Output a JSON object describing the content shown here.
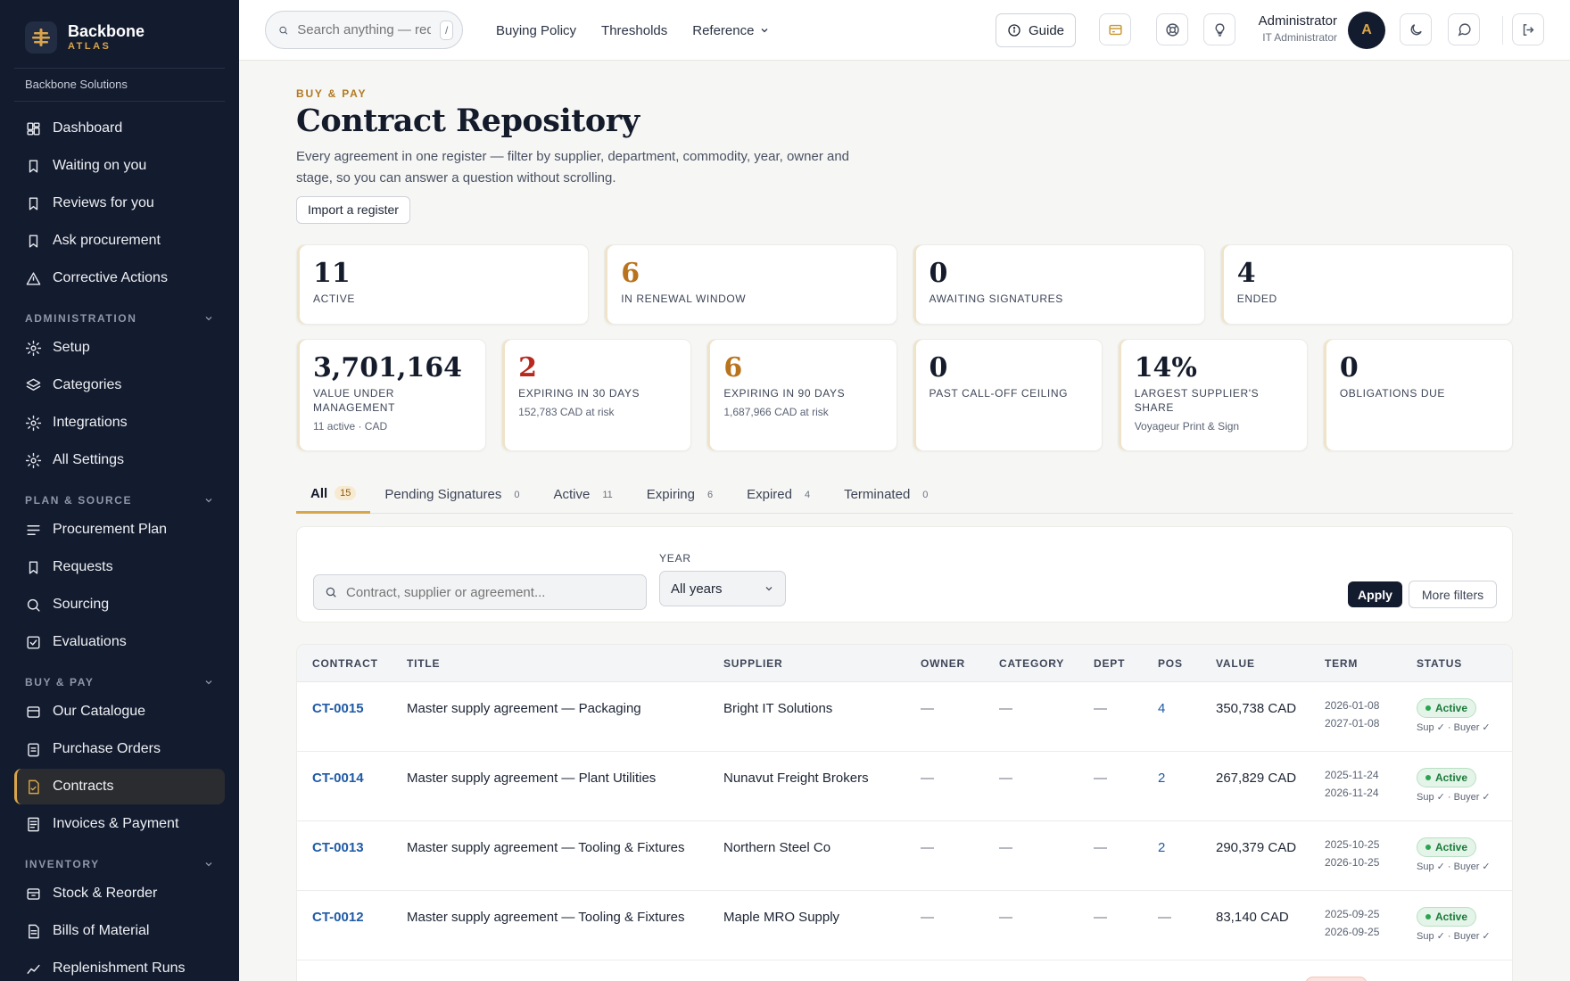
{
  "brand": {
    "name": "Backbone",
    "sub": "ATLAS",
    "org": "Backbone Solutions"
  },
  "sidebar": {
    "top_items": [
      {
        "label": "Dashboard",
        "icon": "dashboard-icon"
      },
      {
        "label": "Waiting on you",
        "icon": "bookmark-icon"
      },
      {
        "label": "Reviews for you",
        "icon": "bookmark-icon"
      },
      {
        "label": "Ask procurement",
        "icon": "bookmark-icon"
      },
      {
        "label": "Corrective Actions",
        "icon": "warning-icon"
      }
    ],
    "groups": [
      {
        "label": "ADMINISTRATION",
        "items": [
          {
            "label": "Setup",
            "icon": "gear-icon"
          },
          {
            "label": "Categories",
            "icon": "layers-icon"
          },
          {
            "label": "Integrations",
            "icon": "gear-icon"
          },
          {
            "label": "All Settings",
            "icon": "gear-icon"
          }
        ]
      },
      {
        "label": "PLAN & SOURCE",
        "items": [
          {
            "label": "Procurement Plan",
            "icon": "list-icon"
          },
          {
            "label": "Requests",
            "icon": "bookmark-icon"
          },
          {
            "label": "Sourcing",
            "icon": "search-icon"
          },
          {
            "label": "Evaluations",
            "icon": "checkbox-icon"
          }
        ]
      },
      {
        "label": "BUY & PAY",
        "items": [
          {
            "label": "Our Catalogue",
            "icon": "catalogue-icon"
          },
          {
            "label": "Purchase Orders",
            "icon": "clipboard-icon"
          },
          {
            "label": "Contracts",
            "icon": "contract-icon",
            "active": true
          },
          {
            "label": "Invoices & Payment",
            "icon": "invoice-icon"
          }
        ]
      },
      {
        "label": "INVENTORY",
        "items": [
          {
            "label": "Stock & Reorder",
            "icon": "box-icon"
          },
          {
            "label": "Bills of Material",
            "icon": "document-icon"
          },
          {
            "label": "Replenishment Runs",
            "icon": "chart-icon"
          }
        ]
      }
    ]
  },
  "topbar": {
    "search_placeholder": "Search anything — req",
    "search_kbd": "/",
    "nav": [
      "Buying Policy",
      "Thresholds",
      "Reference"
    ],
    "guide_label": "Guide",
    "user_name": "Administrator",
    "user_role": "IT Administrator",
    "avatar_initial": "A"
  },
  "page": {
    "eyebrow": "BUY & PAY",
    "title": "Contract Repository",
    "description": "Every agreement in one register — filter by supplier, department, commodity, year, owner and stage, so you can answer a question without scrolling.",
    "import_label": "Import a register"
  },
  "stats_row1": [
    {
      "value": "11",
      "label": "ACTIVE",
      "tone": "dark"
    },
    {
      "value": "6",
      "label": "IN RENEWAL WINDOW",
      "tone": "amber"
    },
    {
      "value": "0",
      "label": "AWAITING SIGNATURES",
      "tone": "dark"
    },
    {
      "value": "4",
      "label": "ENDED",
      "tone": "dark"
    }
  ],
  "stats_row2": [
    {
      "value": "3,701,164",
      "label": "VALUE UNDER MANAGEMENT",
      "sub": "11 active · CAD",
      "tone": "dark"
    },
    {
      "value": "2",
      "label": "EXPIRING IN 30 DAYS",
      "sub": "152,783 CAD at risk",
      "tone": "red"
    },
    {
      "value": "6",
      "label": "EXPIRING IN 90 DAYS",
      "sub": "1,687,966 CAD at risk",
      "tone": "amber"
    },
    {
      "value": "0",
      "label": "PAST CALL-OFF CEILING",
      "sub": "",
      "tone": "dark"
    },
    {
      "value": "14%",
      "label": "LARGEST SUPPLIER'S SHARE",
      "sub": "Voyageur Print & Sign",
      "tone": "dark"
    },
    {
      "value": "0",
      "label": "OBLIGATIONS DUE",
      "sub": "",
      "tone": "dark"
    }
  ],
  "tabs": [
    {
      "label": "All",
      "count": "15",
      "active": true
    },
    {
      "label": "Pending Signatures",
      "count": "0"
    },
    {
      "label": "Active",
      "count": "11"
    },
    {
      "label": "Expiring",
      "count": "6"
    },
    {
      "label": "Expired",
      "count": "4"
    },
    {
      "label": "Terminated",
      "count": "0"
    }
  ],
  "filters": {
    "search_placeholder": "Contract, supplier or agreement...",
    "year_label": "YEAR",
    "year_value": "All years",
    "apply_label": "Apply",
    "more_label": "More filters"
  },
  "table": {
    "headers": [
      "CONTRACT",
      "TITLE",
      "SUPPLIER",
      "OWNER",
      "CATEGORY",
      "DEPT",
      "POS",
      "VALUE",
      "TERM",
      "STATUS"
    ],
    "rows": [
      {
        "id": "CT-0015",
        "title": "Master supply agreement — Packaging",
        "supplier": "Bright IT Solutions",
        "owner": "—",
        "category": "—",
        "dept": "—",
        "pos": "4",
        "value": "350,738 CAD",
        "term_start": "2026-01-08",
        "term_end": "2027-01-08",
        "status": "Active",
        "sig": "Sup ✓ · Buyer ✓"
      },
      {
        "id": "CT-0014",
        "title": "Master supply agreement — Plant Utilities",
        "supplier": "Nunavut Freight Brokers",
        "owner": "—",
        "category": "—",
        "dept": "—",
        "pos": "2",
        "value": "267,829 CAD",
        "term_start": "2025-11-24",
        "term_end": "2026-11-24",
        "status": "Active",
        "sig": "Sup ✓ · Buyer ✓"
      },
      {
        "id": "CT-0013",
        "title": "Master supply agreement — Tooling & Fixtures",
        "supplier": "Northern Steel Co",
        "owner": "—",
        "category": "—",
        "dept": "—",
        "pos": "2",
        "value": "290,379 CAD",
        "term_start": "2025-10-25",
        "term_end": "2026-10-25",
        "status": "Active",
        "sig": "Sup ✓ · Buyer ✓"
      },
      {
        "id": "CT-0012",
        "title": "Master supply agreement — Tooling & Fixtures",
        "supplier": "Maple MRO Supply",
        "owner": "—",
        "category": "—",
        "dept": "—",
        "pos": "—",
        "value": "83,140 CAD",
        "term_start": "2025-09-25",
        "term_end": "2026-09-25",
        "status": "Active",
        "sig": "Sup ✓ · Buyer ✓"
      }
    ]
  },
  "colors": {
    "accent": "#d9a54a",
    "sidebar": "#131b2e",
    "link": "#1f5aa6",
    "active_green": "#1b7a3b",
    "danger": "#b8281f"
  }
}
